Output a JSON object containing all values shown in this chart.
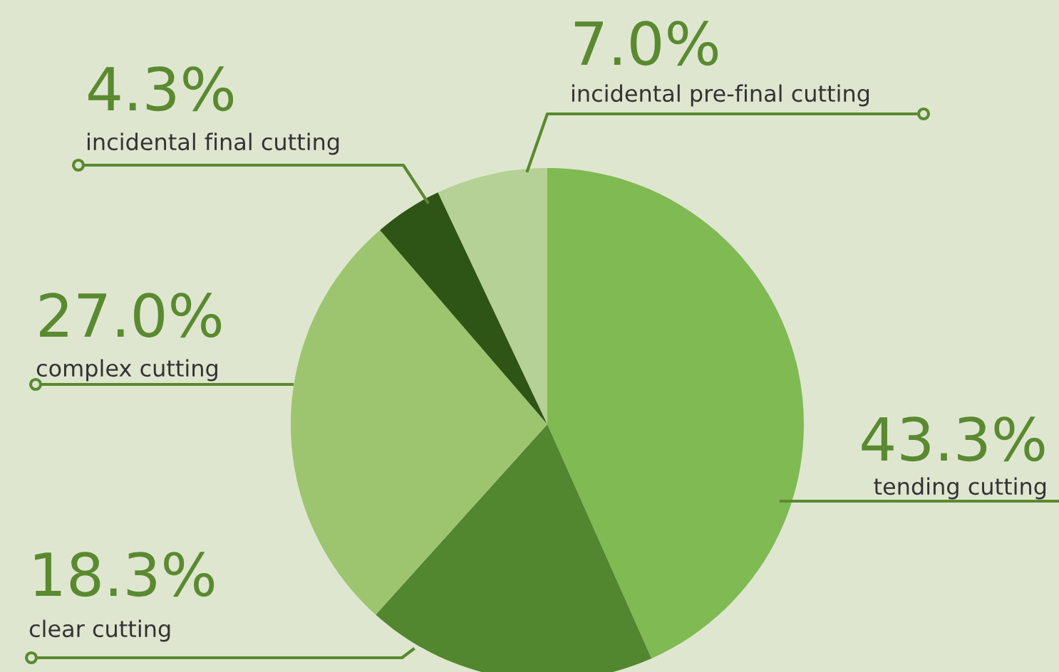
{
  "chart_data": {
    "type": "pie",
    "categories": [
      "tending cutting",
      "clear cutting",
      "complex cutting",
      "incidental final cutting",
      "incidental pre-final cutting"
    ],
    "values": [
      43.3,
      18.3,
      27.0,
      4.3,
      7.0
    ],
    "value_labels": [
      "43.3%",
      "18.3%",
      "27.0%",
      "4.3%",
      "7.0%"
    ],
    "colors": [
      "#7fba52",
      "#52862f",
      "#9dc46f",
      "#2f5516",
      "#b5d195"
    ]
  }
}
